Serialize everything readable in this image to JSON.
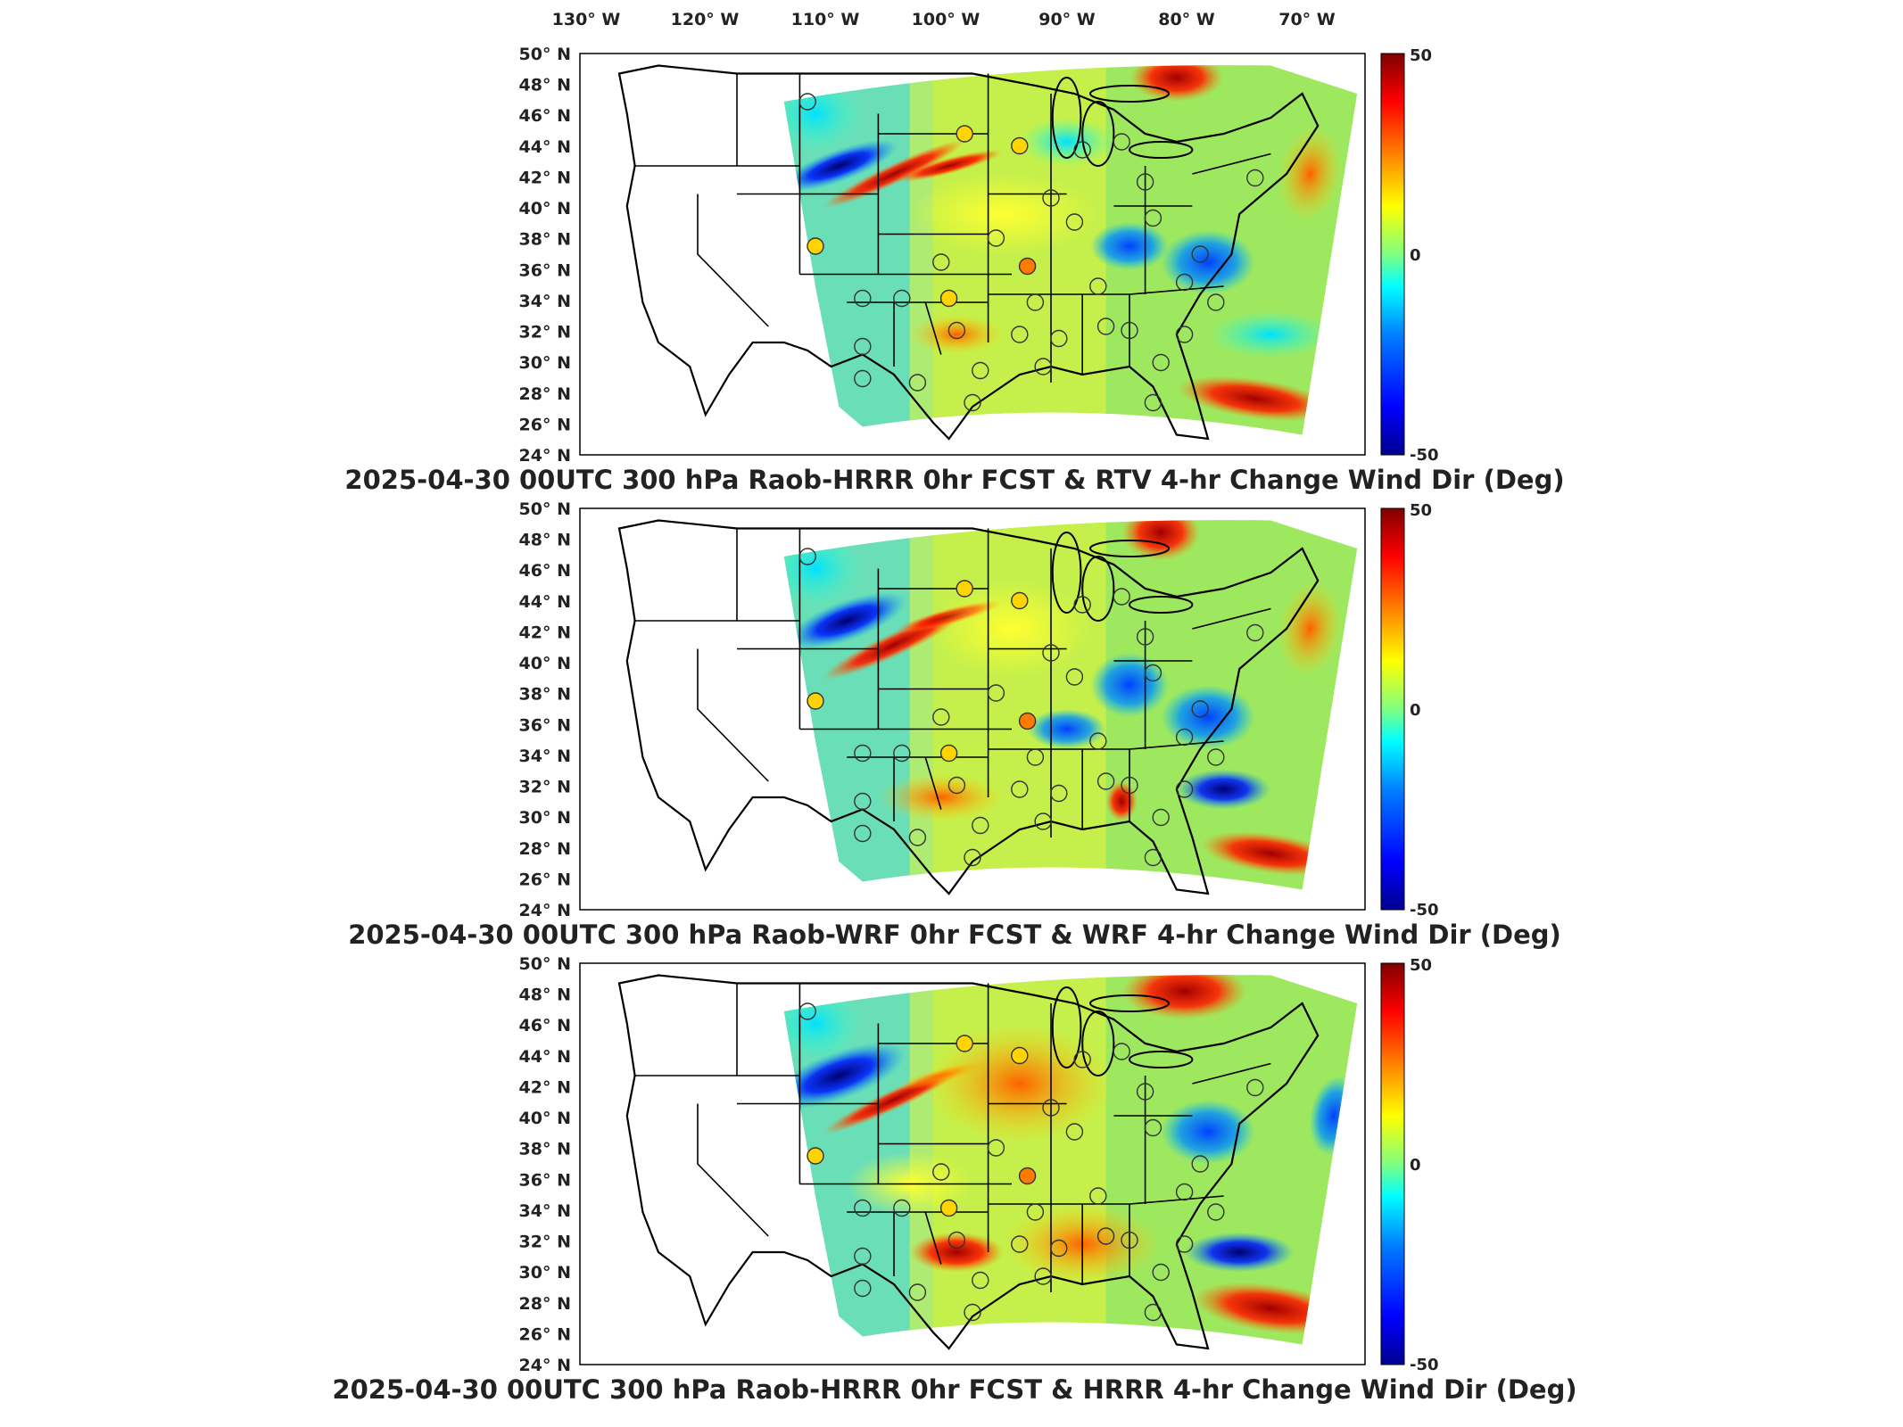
{
  "lon_labels": [
    "130° W",
    "120° W",
    "110° W",
    "100° W",
    "90° W",
    "80° W",
    "70° W"
  ],
  "lat_labels": [
    "50° N",
    "48° N",
    "46° N",
    "44° N",
    "42° N",
    "40° N",
    "38° N",
    "36° N",
    "34° N",
    "32° N",
    "30° N",
    "28° N",
    "26° N",
    "24° N"
  ],
  "panels": [
    {
      "title": "2025-04-30 00UTC 300 hPa Raob-HRRR 0hr FCST & RTV 4-hr Change Wind Dir (Deg)",
      "colorbar": {
        "max": "50",
        "mid": "0",
        "min": "-50"
      }
    },
    {
      "title": "2025-04-30 00UTC 300 hPa Raob-WRF 0hr FCST & WRF 4-hr Change Wind Dir (Deg)",
      "colorbar": {
        "max": "50",
        "mid": "0",
        "min": "-50"
      }
    },
    {
      "title": "2025-04-30 00UTC 300 hPa Raob-HRRR 0hr FCST & HRRR 4-hr Change Wind Dir (Deg)",
      "colorbar": {
        "max": "50",
        "mid": "0",
        "min": "-50"
      }
    }
  ],
  "colormap": [
    "#00008f",
    "#0000ff",
    "#0080ff",
    "#00ffff",
    "#80ff80",
    "#ffff00",
    "#ff8000",
    "#ff0000",
    "#800000"
  ],
  "colors": {
    "land": "#ffffff",
    "border": "#000000",
    "field_mid": "#9ee860"
  }
}
